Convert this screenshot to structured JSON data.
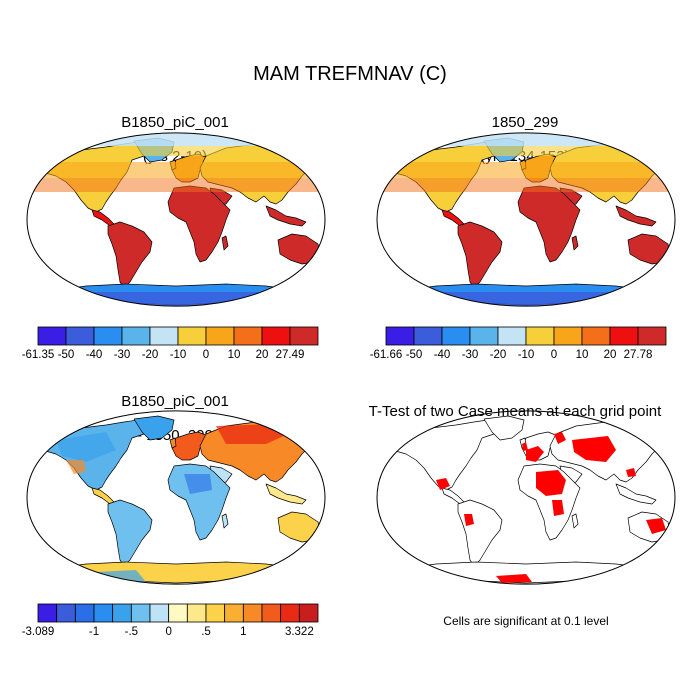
{
  "figure": {
    "title": "MAM TREFMNAV (C)"
  },
  "panels": [
    {
      "id": "case1",
      "title_line1": "B1850_piC_001",
      "title_line2": "(yrs 2-10)",
      "colorbar": {
        "labels": [
          "-61.35",
          "-50",
          "-40",
          "-30",
          "-20",
          "-10",
          "0",
          "10",
          "20",
          "27.49"
        ],
        "colors": [
          "#3a1ee6",
          "#3b5ddc",
          "#2a8df0",
          "#5ab3ea",
          "#c4e3f5",
          "#f7cf3a",
          "#f9a51a",
          "#f36f1a",
          "#ee1010",
          "#cf2a2a"
        ]
      }
    },
    {
      "id": "case2",
      "title_line1": "1850_299",
      "title_line2": "(yrs 134-153)",
      "colorbar": {
        "labels": [
          "-61.66",
          "-50",
          "-40",
          "-30",
          "-20",
          "-10",
          "0",
          "10",
          "20",
          "27.78"
        ],
        "colors": [
          "#3a1ee6",
          "#3b5ddc",
          "#2a8df0",
          "#5ab3ea",
          "#c4e3f5",
          "#f7cf3a",
          "#f9a51a",
          "#f36f1a",
          "#ee1010",
          "#cf2a2a"
        ]
      }
    },
    {
      "id": "diff",
      "title_line1": "B1850_piC_001",
      "title_line2": "- 1850_299",
      "colorbar": {
        "labels": [
          "-3.089",
          "-1",
          "-.5",
          "0",
          ".5",
          "1",
          "3.322"
        ],
        "label_slots": [
          0,
          3,
          5,
          7,
          9,
          11,
          14
        ],
        "colors": [
          "#3a1ee6",
          "#3b5ddc",
          "#2a6ee8",
          "#2a8df0",
          "#3aa2ec",
          "#6fc0ee",
          "#bfe3f6",
          "#fff9c4",
          "#fde98a",
          "#fbd24a",
          "#f9b032",
          "#f78a26",
          "#f35b1c",
          "#e92a14",
          "#c81e1e"
        ]
      }
    },
    {
      "id": "ttest",
      "title_line1": "T-Test of two Case means at each grid point",
      "title_line2": "",
      "note": "Cells are significant at 0.1 level",
      "significant_color": "#ff0000"
    }
  ]
}
